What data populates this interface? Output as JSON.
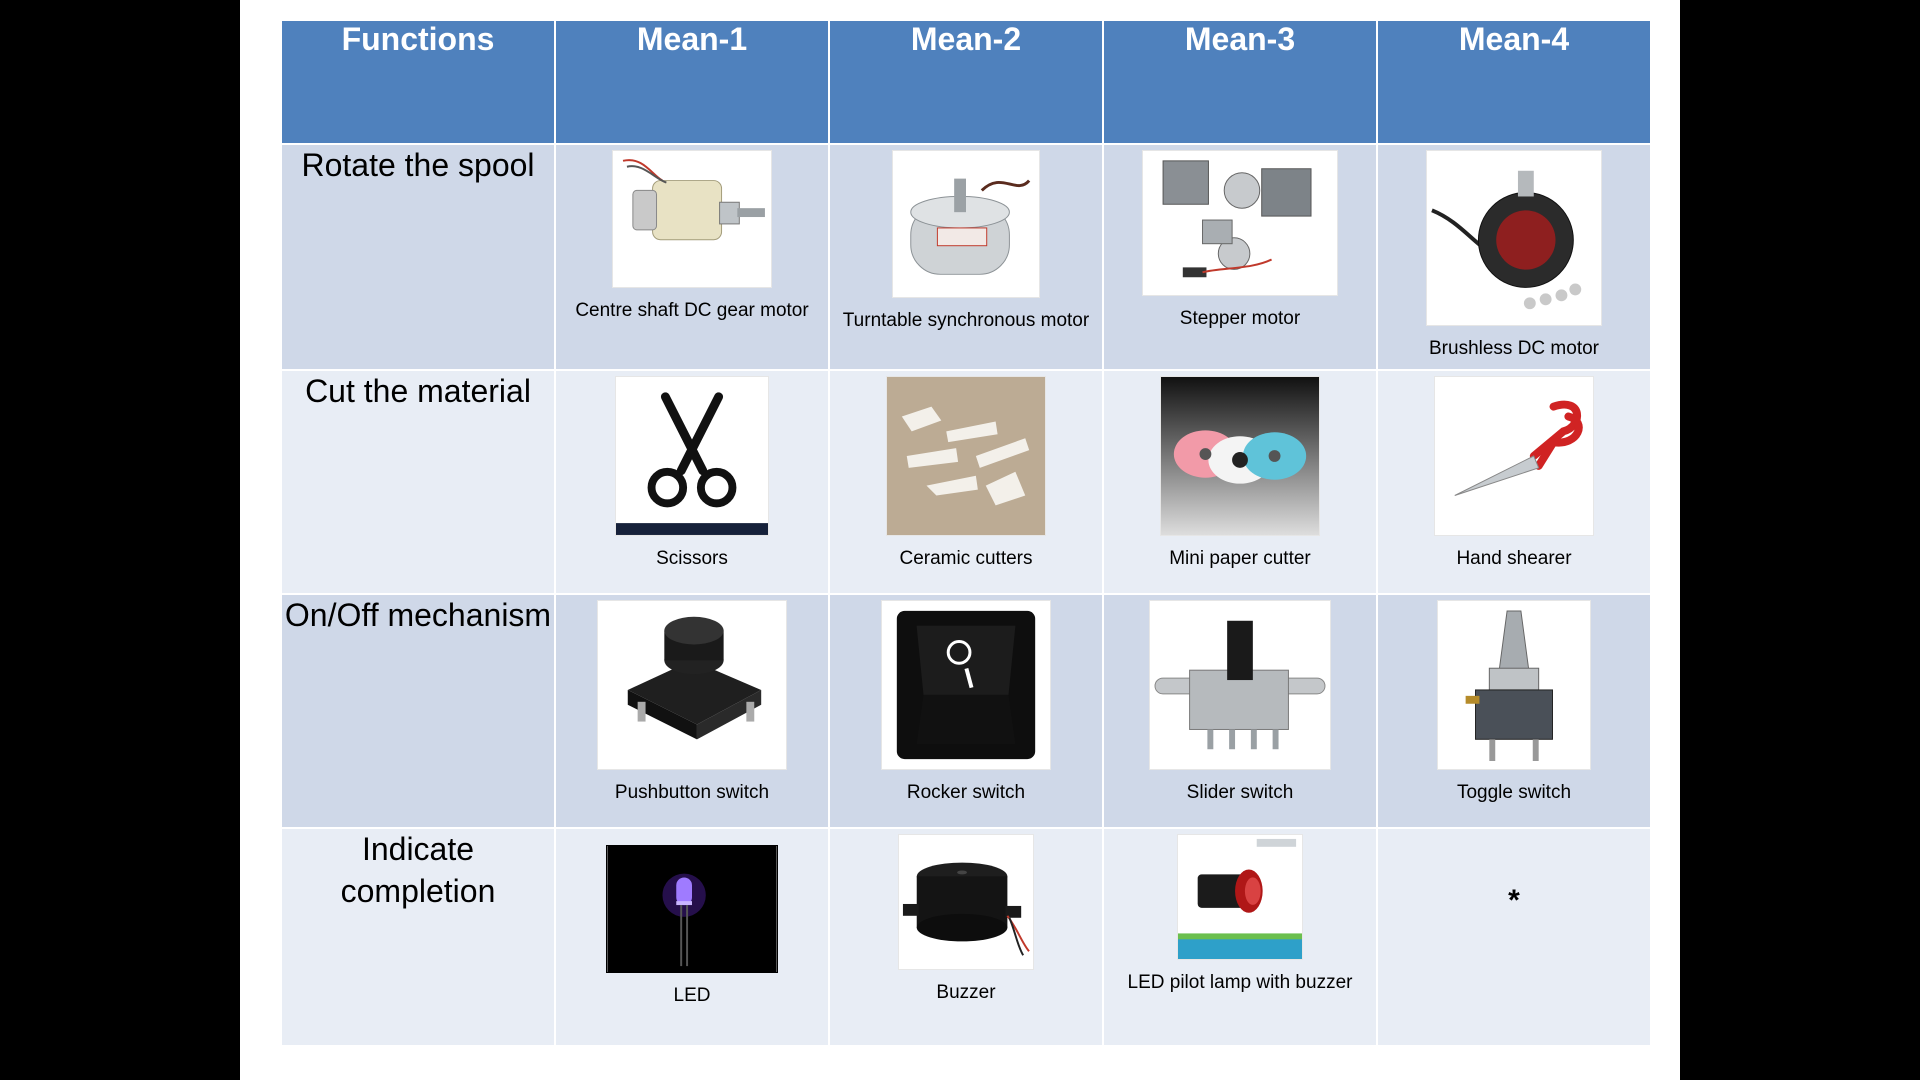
{
  "table": {
    "headers": [
      "Functions",
      "Mean-1",
      "Mean-2",
      "Mean-3",
      "Mean-4"
    ],
    "rows": [
      {
        "function": "Rotate the spool",
        "means": [
          {
            "caption": "Centre shaft DC gear motor",
            "icon": "dc-gear-motor-icon"
          },
          {
            "caption": "Turntable synchronous motor",
            "icon": "synchronous-motor-icon"
          },
          {
            "caption": "Stepper motor",
            "icon": "stepper-motor-icon"
          },
          {
            "caption": "Brushless DC motor",
            "icon": "brushless-motor-icon"
          }
        ]
      },
      {
        "function": "Cut the material",
        "means": [
          {
            "caption": "Scissors",
            "icon": "scissors-icon"
          },
          {
            "caption": "Ceramic cutters",
            "icon": "ceramic-cutters-icon"
          },
          {
            "caption": "Mini paper cutter",
            "icon": "paper-cutter-icon"
          },
          {
            "caption": "Hand shearer",
            "icon": "hand-shearer-icon"
          }
        ]
      },
      {
        "function": "On/Off mechanism",
        "means": [
          {
            "caption": "Pushbutton switch",
            "icon": "pushbutton-icon"
          },
          {
            "caption": "Rocker switch",
            "icon": "rocker-switch-icon"
          },
          {
            "caption": "Slider switch",
            "icon": "slider-switch-icon"
          },
          {
            "caption": "Toggle switch",
            "icon": "toggle-switch-icon"
          }
        ]
      },
      {
        "function": "Indicate completion",
        "means": [
          {
            "caption": "LED",
            "icon": "led-icon"
          },
          {
            "caption": "Buzzer",
            "icon": "buzzer-icon"
          },
          {
            "caption": "LED pilot lamp with buzzer",
            "icon": "pilot-lamp-icon"
          },
          {
            "caption": "*",
            "icon": ""
          }
        ]
      }
    ],
    "colors": {
      "header": "#4f81bd",
      "row_dark": "#cfd8e8",
      "row_light": "#e8edf5"
    }
  }
}
